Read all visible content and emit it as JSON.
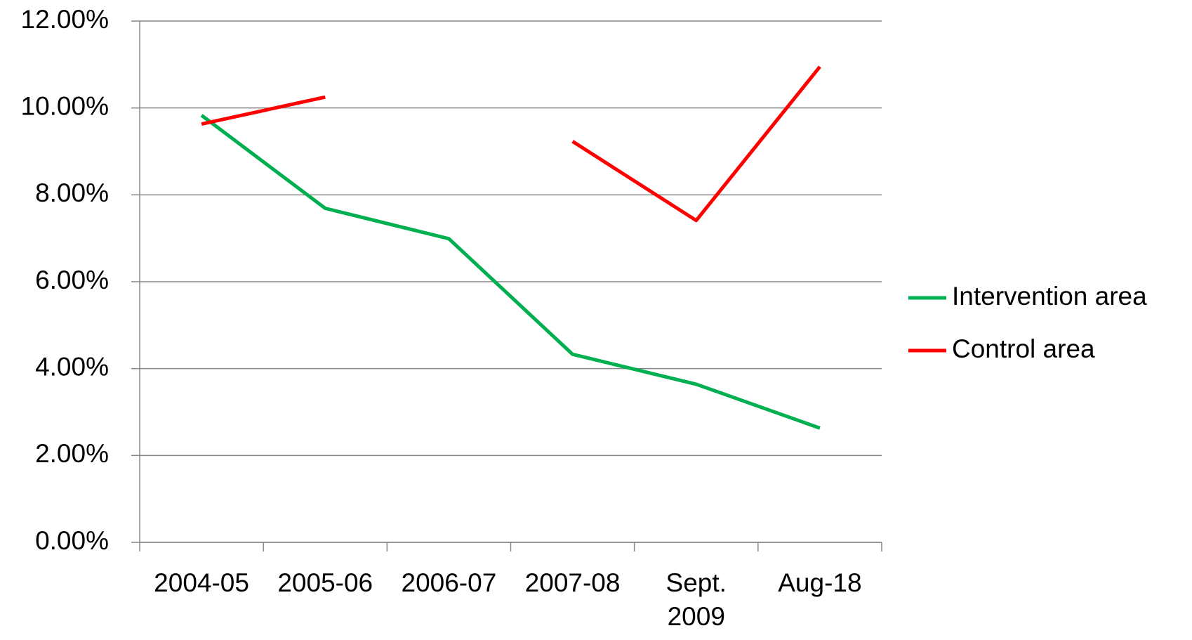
{
  "chart_data": {
    "type": "line",
    "categories": [
      "2004-05",
      "2005-06",
      "2006-07",
      "2007-08",
      "Sept. 2009",
      "Aug-18"
    ],
    "series": [
      {
        "name": "Intervention area",
        "color": "#00b050",
        "values": [
          9.83,
          7.69,
          6.99,
          4.33,
          3.64,
          2.63
        ]
      },
      {
        "name": "Control area",
        "color": "#ff0000",
        "values": [
          9.63,
          10.25,
          null,
          9.23,
          7.41,
          10.95
        ]
      }
    ],
    "ylim": [
      0,
      12
    ],
    "yticks": [
      {
        "value": 0,
        "label": "0.00%"
      },
      {
        "value": 2,
        "label": "2.00%"
      },
      {
        "value": 4,
        "label": "4.00%"
      },
      {
        "value": 6,
        "label": "6.00%"
      },
      {
        "value": 8,
        "label": "8.00%"
      },
      {
        "value": 10,
        "label": "10.00%"
      },
      {
        "value": 12,
        "label": "12.00%"
      }
    ],
    "grid": true,
    "legend": "right"
  }
}
